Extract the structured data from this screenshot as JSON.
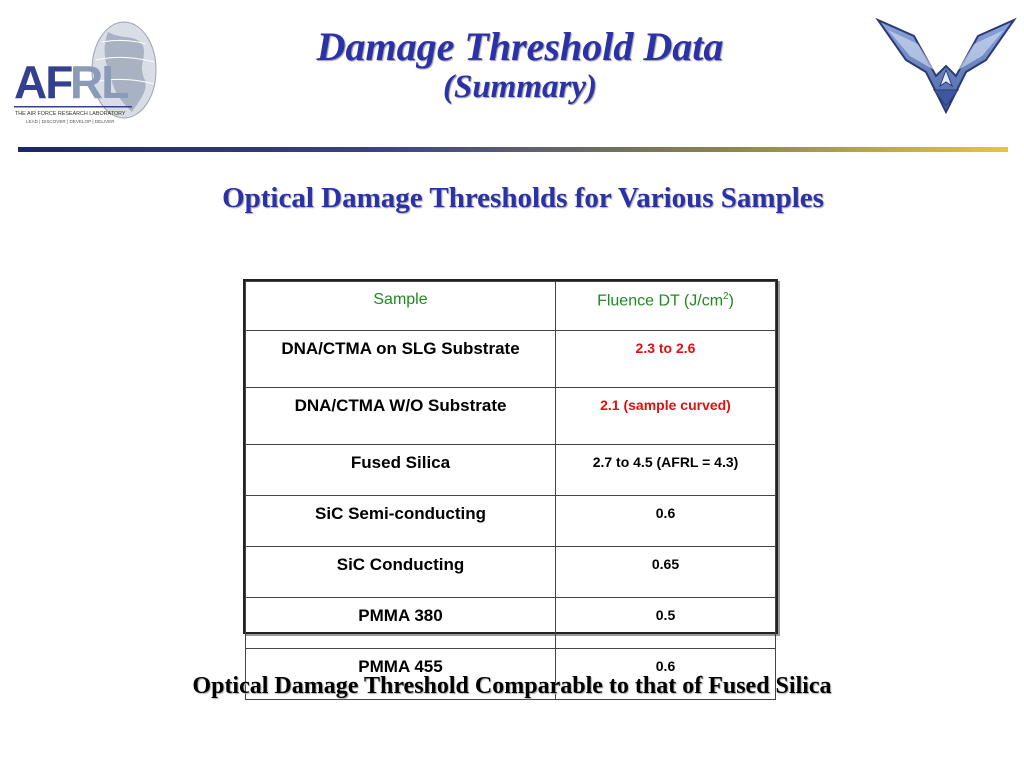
{
  "header": {
    "title": "Damage Threshold Data",
    "subtitle": "(Summary)",
    "afrl_logo": {
      "text": "AFRL",
      "tagline": "THE AIR FORCE RESEARCH LABORATORY",
      "motto": "LEAD | DISCOVER | DEVELOP | DELIVER"
    },
    "wings_logo": "air-force-wings-symbol"
  },
  "section_title": "Optical Damage Thresholds for Various Samples",
  "table": {
    "headers": {
      "sample": "Sample",
      "fluence_prefix": "Fluence DT (J/cm",
      "fluence_sup": "2",
      "fluence_suffix": ")"
    },
    "rows": [
      {
        "sample": "DNA/CTMA on SLG Substrate",
        "value": "2.3 to 2.6",
        "color": "red"
      },
      {
        "sample": "DNA/CTMA W/O Substrate",
        "value": "2.1 (sample curved)",
        "color": "red"
      },
      {
        "sample": "Fused Silica",
        "value": "2.7 to 4.5 (AFRL = 4.3)",
        "color": "black"
      },
      {
        "sample": "SiC Semi-conducting",
        "value": "0.6",
        "color": "black"
      },
      {
        "sample": "SiC Conducting",
        "value": "0.65",
        "color": "black"
      },
      {
        "sample": "PMMA 380",
        "value": "0.5",
        "color": "black"
      },
      {
        "sample": "PMMA 455",
        "value": "0.6",
        "color": "black"
      }
    ]
  },
  "footer": "Optical Damage Threshold Comparable to that of Fused Silica",
  "colors": {
    "title_blue": "#2b31a8",
    "header_green": "#1e8a1e",
    "value_red": "#e01010"
  }
}
